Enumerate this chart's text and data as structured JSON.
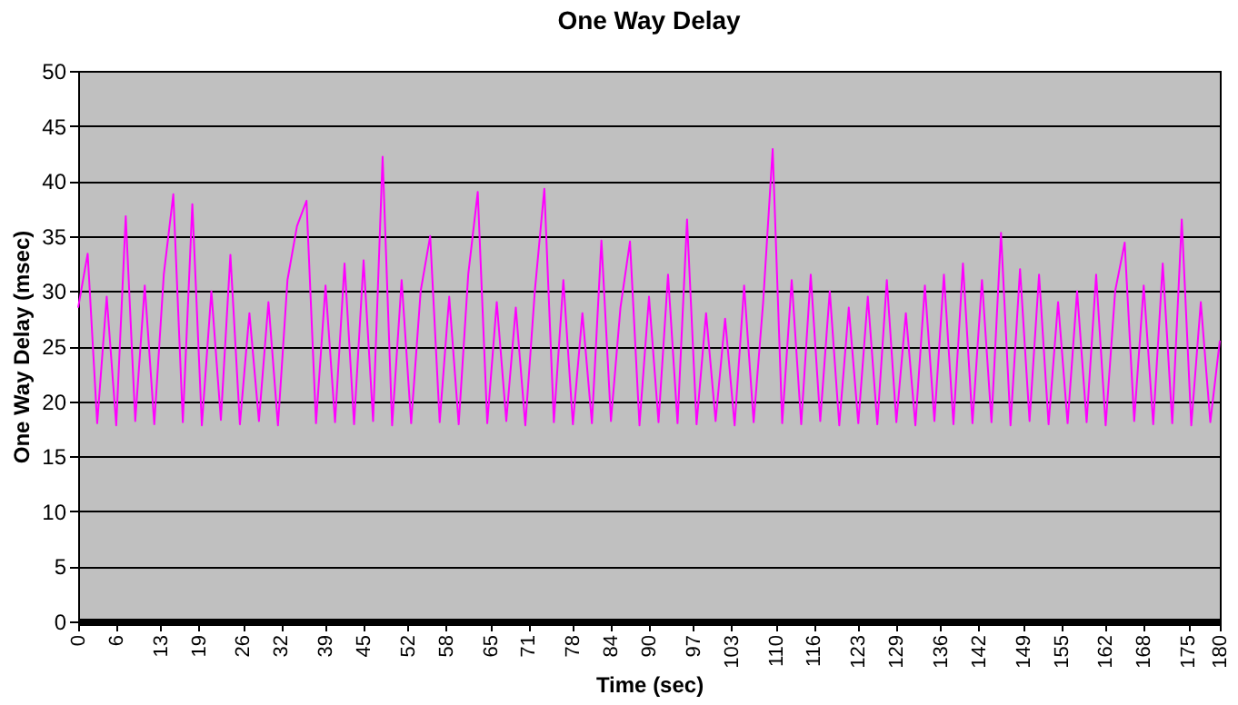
{
  "chart_data": {
    "type": "line",
    "title": "One Way Delay",
    "xlabel": "Time (sec)",
    "ylabel": "One Way Delay (msec)",
    "x": [
      0,
      1.5,
      3,
      4.5,
      6,
      7.5,
      9,
      10.5,
      12,
      13.5,
      15,
      16.5,
      18,
      19.5,
      21,
      22.5,
      24,
      25.5,
      27,
      28.5,
      30,
      31.5,
      33,
      34.5,
      36,
      37.5,
      39,
      40.5,
      42,
      43.5,
      45,
      46.5,
      48,
      49.5,
      51,
      52.5,
      54,
      55.5,
      57,
      58.5,
      60,
      61.5,
      63,
      64.5,
      66,
      67.5,
      69,
      70.5,
      72,
      73.5,
      75,
      76.5,
      78,
      79.5,
      81,
      82.5,
      84,
      85.5,
      87,
      88.5,
      90,
      91.5,
      93,
      94.5,
      96,
      97.5,
      99,
      100.5,
      102,
      103.5,
      105,
      106.5,
      108,
      109.5,
      111,
      112.5,
      114,
      115.5,
      117,
      118.5,
      120,
      121.5,
      123,
      124.5,
      126,
      127.5,
      129,
      130.5,
      132,
      133.5,
      135,
      136.5,
      138,
      139.5,
      141,
      142.5,
      144,
      145.5,
      147,
      148.5,
      150,
      151.5,
      153,
      154.5,
      156,
      157.5,
      159,
      160.5,
      162,
      163.5,
      165,
      166.5,
      168,
      169.5,
      171,
      172.5,
      174,
      175.5,
      177,
      178.5,
      180
    ],
    "series": [
      {
        "color": "#ff00ff",
        "values": [
          28.5,
          33.4,
          18.0,
          29.5,
          17.8,
          36.8,
          18.2,
          30.5,
          17.9,
          31.5,
          38.8,
          18.1,
          37.9,
          17.8,
          30.0,
          18.3,
          33.3,
          17.9,
          28.0,
          18.2,
          29.0,
          17.8,
          31.0,
          35.9,
          38.2,
          18.0,
          30.5,
          18.1,
          32.5,
          17.9,
          32.8,
          18.2,
          42.2,
          17.8,
          31.0,
          18.0,
          30.0,
          35.0,
          18.1,
          29.5,
          17.9,
          31.5,
          39.0,
          18.0,
          29.0,
          18.2,
          28.5,
          17.8,
          30.0,
          39.3,
          18.1,
          31.0,
          17.9,
          28.0,
          18.0,
          34.6,
          18.2,
          28.5,
          34.5,
          17.8,
          29.5,
          18.1,
          31.5,
          18.0,
          36.5,
          17.9,
          28.0,
          18.2,
          27.5,
          17.8,
          30.5,
          18.1,
          29.0,
          42.9,
          18.0,
          31.0,
          17.9,
          31.5,
          18.2,
          30.0,
          17.8,
          28.5,
          18.0,
          29.5,
          17.9,
          31.0,
          18.1,
          28.0,
          17.8,
          30.5,
          18.2,
          31.5,
          17.9,
          32.5,
          18.0,
          31.0,
          18.1,
          35.3,
          17.8,
          32.0,
          18.2,
          31.5,
          17.9,
          29.0,
          18.0,
          30.0,
          18.1,
          31.5,
          17.8,
          30.0,
          34.4,
          18.2,
          30.5,
          17.9,
          32.5,
          18.0,
          36.5,
          17.8,
          29.0,
          18.1,
          25.5
        ]
      }
    ],
    "xlim": [
      0,
      180
    ],
    "xticks": [
      0,
      6,
      13,
      19,
      26,
      32,
      39,
      45,
      52,
      58,
      65,
      71,
      78,
      84,
      90,
      97,
      103,
      110,
      116,
      123,
      129,
      136,
      142,
      149,
      155,
      162,
      168,
      175,
      180
    ],
    "ylim": [
      0,
      50
    ],
    "yticks": [
      0,
      5,
      10,
      15,
      20,
      25,
      30,
      35,
      40,
      45,
      50
    ],
    "grid": "y"
  }
}
